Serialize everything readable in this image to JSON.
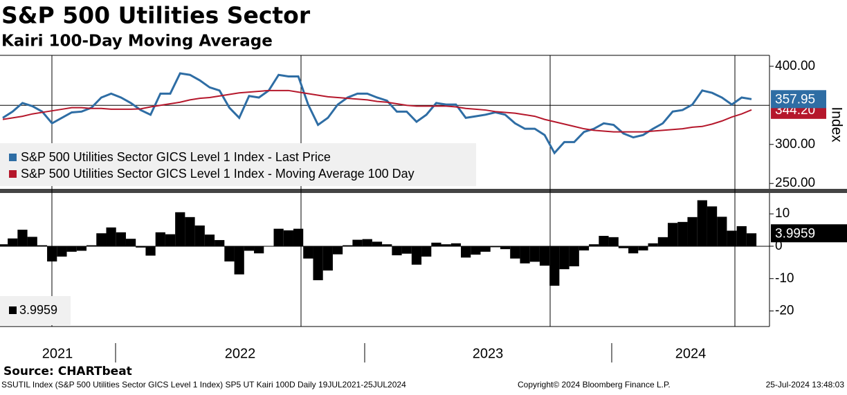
{
  "header": {
    "title": "S&P 500 Utilities Sector",
    "subtitle": "Kairi 100-Day Moving Average"
  },
  "chart_data": [
    {
      "type": "line",
      "ylabel": "Index",
      "ylim": [
        244,
        414
      ],
      "yticks": [
        {
          "value": 250,
          "label": "250.00"
        },
        {
          "value": 300,
          "label": "300.00"
        },
        {
          "value": 400,
          "label": "400.00"
        }
      ],
      "grid_lines": [
        350
      ],
      "series": [
        {
          "name": "S&P 500 Utilities Sector GICS Level 1 Index - Last Price",
          "color": "#2e6da4",
          "last_value_label": "357.95",
          "values": [
            334,
            342,
            353,
            349,
            342,
            327,
            334,
            341,
            342,
            347,
            360,
            365,
            360,
            353,
            344,
            338,
            365,
            365,
            391,
            389,
            382,
            373,
            369,
            347,
            334,
            362,
            360,
            369,
            389,
            387,
            387,
            351,
            325,
            334,
            351,
            360,
            365,
            365,
            360,
            356,
            342,
            342,
            329,
            338,
            353,
            351,
            351,
            334,
            336,
            338,
            341,
            338,
            327,
            320,
            320,
            312,
            289,
            303,
            303,
            316,
            320,
            327,
            325,
            314,
            309,
            312,
            320,
            327,
            342,
            344,
            351,
            369,
            366,
            360,
            351,
            360,
            357.95
          ]
        },
        {
          "name": "S&P 500 Utilities Sector GICS Level 1 Index - Moving Average 100 Day",
          "color": "#b5172b",
          "last_value_label": "344.20",
          "values": [
            332,
            334,
            336,
            339,
            341,
            343,
            345,
            347,
            347,
            346,
            346,
            345,
            345,
            345,
            345.5,
            348,
            350,
            352,
            354,
            357,
            359,
            360,
            362,
            364,
            366,
            367,
            368,
            369,
            369,
            369,
            367,
            365,
            363,
            361,
            360,
            359,
            358,
            357,
            355,
            354,
            352,
            350,
            349,
            349,
            349,
            349,
            348,
            346,
            345,
            344,
            342,
            341,
            340,
            338,
            336,
            332,
            329,
            326,
            323,
            320,
            318,
            317,
            316,
            316,
            316,
            316,
            317,
            318,
            319,
            320,
            322,
            323,
            326,
            330,
            335,
            339,
            344.2
          ]
        }
      ]
    },
    {
      "type": "bar",
      "ylim": [
        -24.8,
        15.8
      ],
      "yticks": [
        -20,
        -10,
        0,
        10
      ],
      "grid_lines": [
        0
      ],
      "xlabels": [
        "2021",
        "2022",
        "2023",
        "2024"
      ],
      "series": [
        {
          "name": "3.9959",
          "color": "#000000",
          "last_value_label": "3.9959",
          "values": [
            0.6,
            2.4,
            5.1,
            2.9,
            0.3,
            -4.7,
            -3.2,
            -1.7,
            -1.4,
            0.3,
            4.0,
            5.8,
            4.3,
            2.3,
            -0.4,
            -2.9,
            4.3,
            3.7,
            10.5,
            9.0,
            6.4,
            3.6,
            1.9,
            -4.7,
            -8.7,
            -1.4,
            -2.2,
            0,
            5.4,
            4.9,
            5.4,
            -3.8,
            -10.5,
            -7.5,
            -2.5,
            0.3,
            2.0,
            2.2,
            1.4,
            0.6,
            -2.8,
            -2.3,
            -5.7,
            -3.2,
            1.1,
            0.6,
            0.9,
            -3.5,
            -2.6,
            -1.7,
            -0.3,
            -0.9,
            -3.8,
            -5.3,
            -4.8,
            -6.0,
            -12.2,
            -7.1,
            -6.2,
            -1.3,
            0.6,
            3.2,
            2.8,
            -0.6,
            -2.2,
            -1.3,
            0.9,
            2.8,
            7.2,
            7.5,
            9.0,
            14.2,
            12.3,
            9.1,
            4.8,
            6.2,
            3.9959
          ]
        }
      ]
    }
  ],
  "footer": {
    "source": "Source: CHARTbeat",
    "description": "SSUTIL Index (S&P 500 Utilities Sector GICS Level 1 Index) SP5 UT Kairi 100D  Daily 19JUL2021-25JUL2024",
    "copyright": "Copyright© 2024 Bloomberg Finance L.P.",
    "timestamp": "25-Jul-2024 13:48:03"
  }
}
